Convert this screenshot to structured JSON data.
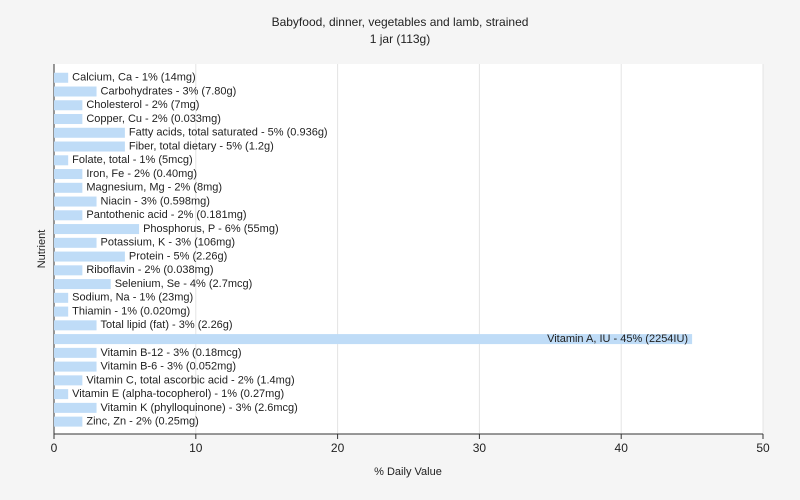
{
  "chart_data": {
    "type": "bar",
    "orientation": "horizontal",
    "title": "Babyfood, dinner, vegetables and lamb, strained",
    "subtitle": "1 jar (113g)",
    "xlabel": "% Daily Value",
    "ylabel": "Nutrient",
    "color": "#bfdcf7",
    "grid": true,
    "xlim": [
      0,
      50
    ],
    "xticks": [
      0,
      10,
      20,
      30,
      40,
      50
    ],
    "values": [
      1,
      3,
      2,
      2,
      5,
      5,
      1,
      2,
      2,
      3,
      2,
      6,
      3,
      5,
      2,
      4,
      1,
      1,
      3,
      45,
      3,
      3,
      2,
      1,
      3,
      2
    ],
    "value_labels": [
      "Calcium, Ca - 1% (14mg)",
      "Carbohydrates - 3% (7.80g)",
      "Cholesterol - 2% (7mg)",
      "Copper, Cu - 2% (0.033mg)",
      "Fatty acids, total saturated - 5% (0.936g)",
      "Fiber, total dietary - 5% (1.2g)",
      "Folate, total - 1% (5mcg)",
      "Iron, Fe - 2% (0.40mg)",
      "Magnesium, Mg - 2% (8mg)",
      "Niacin - 3% (0.598mg)",
      "Pantothenic acid - 2% (0.181mg)",
      "Phosphorus, P - 6% (55mg)",
      "Potassium, K - 3% (106mg)",
      "Protein - 5% (2.26g)",
      "Riboflavin - 2% (0.038mg)",
      "Selenium, Se - 4% (2.7mcg)",
      "Sodium, Na - 1% (23mg)",
      "Thiamin - 1% (0.020mg)",
      "Total lipid (fat) - 3% (2.26g)",
      "Vitamin A, IU - 45% (2254IU)",
      "Vitamin B-12 - 3% (0.18mcg)",
      "Vitamin B-6 - 3% (0.052mg)",
      "Vitamin C, total ascorbic acid - 2% (1.4mg)",
      "Vitamin E (alpha-tocopherol) - 1% (0.27mg)",
      "Vitamin K (phylloquinone) - 3% (2.6mcg)",
      "Zinc, Zn - 2% (0.25mg)"
    ]
  }
}
